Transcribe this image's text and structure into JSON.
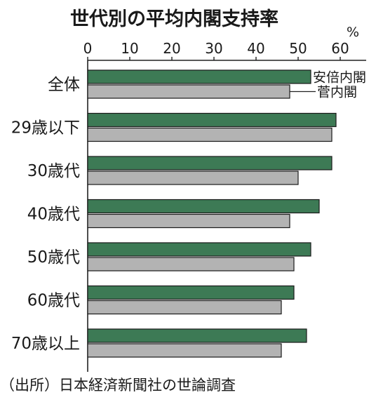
{
  "chart_data": {
    "type": "bar",
    "orientation": "horizontal",
    "title": "世代別の平均内閣支持率",
    "unit": "%",
    "source": "（出所）日本経済新聞社の世論調査",
    "categories": [
      "全体",
      "29歳以下",
      "30歳代",
      "40歳代",
      "50歳代",
      "60歳代",
      "70歳以上"
    ],
    "series": [
      {
        "name": "安倍内閣",
        "color": "#3d7a55",
        "values": [
          53,
          59,
          58,
          55,
          53,
          49,
          52
        ]
      },
      {
        "name": "菅内閣",
        "color": "#b3b3b3",
        "values": [
          48,
          58,
          50,
          48,
          49,
          46,
          46
        ]
      }
    ],
    "xlim": [
      0,
      65
    ],
    "xticks": [
      0,
      10,
      20,
      30,
      40,
      50,
      60
    ],
    "grid": false,
    "legend": "inline-callouts-first-group"
  }
}
